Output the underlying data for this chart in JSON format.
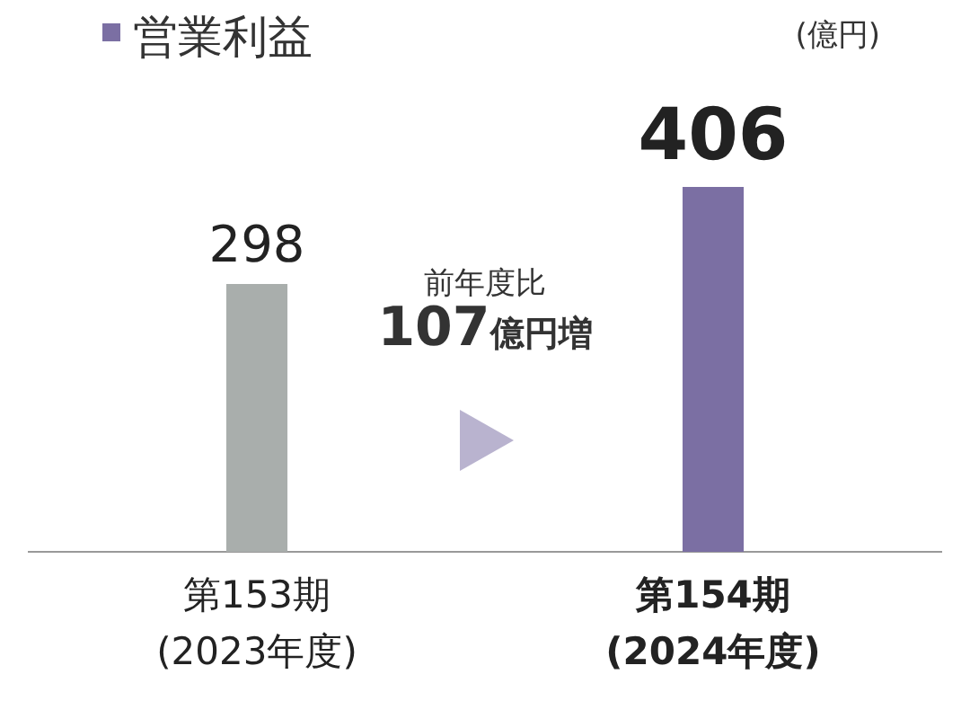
{
  "chart_data": {
    "type": "bar",
    "title": "営業利益",
    "ylabel": "(億円)",
    "categories": [
      "第153期\n(2023年度)",
      "第154期\n(2024年度)"
    ],
    "values": [
      298,
      406
    ],
    "colors": [
      "#a9aeac",
      "#7b6fa3"
    ],
    "data_labels": true,
    "grid": false,
    "legend": false,
    "annotations": [
      "前年度比",
      "107億円増"
    ]
  }
}
